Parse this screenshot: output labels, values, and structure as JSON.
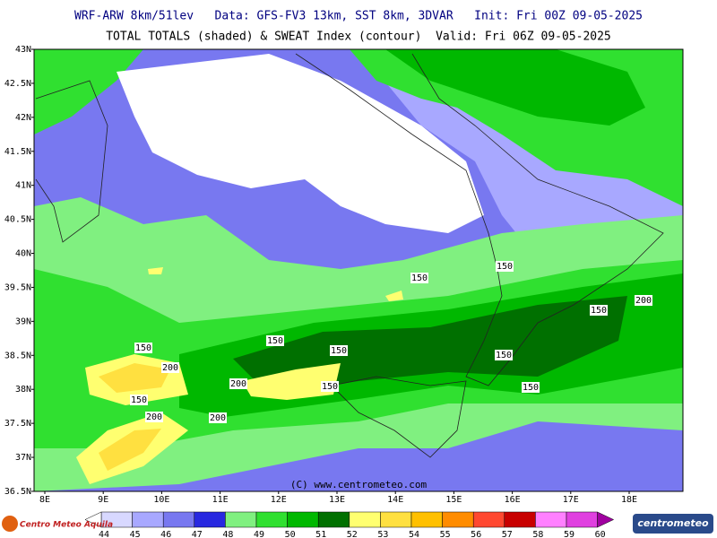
{
  "header": {
    "title": "WRF-ARW 8km/51lev   Data: GFS-FV3 13km, SST 8km, 3DVAR   Init: Fri 00Z 09-05-2025",
    "subtitle": "TOTAL TOTALS (shaded) & SWEAT Index (contour)  Valid: Fri 06Z 09-05-2025"
  },
  "map": {
    "lat_labels": [
      "43N",
      "42.5N",
      "42N",
      "41.5N",
      "41N",
      "40.5N",
      "40N",
      "39.5N",
      "39N",
      "38.5N",
      "38N",
      "37.5N",
      "37N",
      "36.5N"
    ],
    "lon_labels": [
      "8E",
      "9E",
      "10E",
      "11E",
      "12E",
      "13E",
      "14E",
      "15E",
      "16E",
      "17E",
      "18E"
    ],
    "contour_labels": [
      "150",
      "150",
      "200",
      "150",
      "150",
      "150",
      "150",
      "200",
      "150",
      "200",
      "150",
      "150",
      "150",
      "200",
      "200"
    ],
    "credit": "(C) www.centrometeo.com"
  },
  "legend": {
    "labels": [
      "44",
      "45",
      "46",
      "47",
      "48",
      "49",
      "50",
      "51",
      "52",
      "53",
      "54",
      "55",
      "56",
      "57",
      "58",
      "59",
      "60"
    ],
    "colors": [
      "#d8d8ff",
      "#a8a8ff",
      "#7878f0",
      "#2828e0",
      "#80f080",
      "#30e030",
      "#00b800",
      "#007000",
      "#ffff70",
      "#ffe040",
      "#ffc000",
      "#ff8c00",
      "#ff4830",
      "#c80000",
      "#ff80ff",
      "#e040e0",
      "#a000a0"
    ]
  },
  "logos": {
    "left": "Centro Meteo Aquila",
    "right": "centrometeo"
  }
}
